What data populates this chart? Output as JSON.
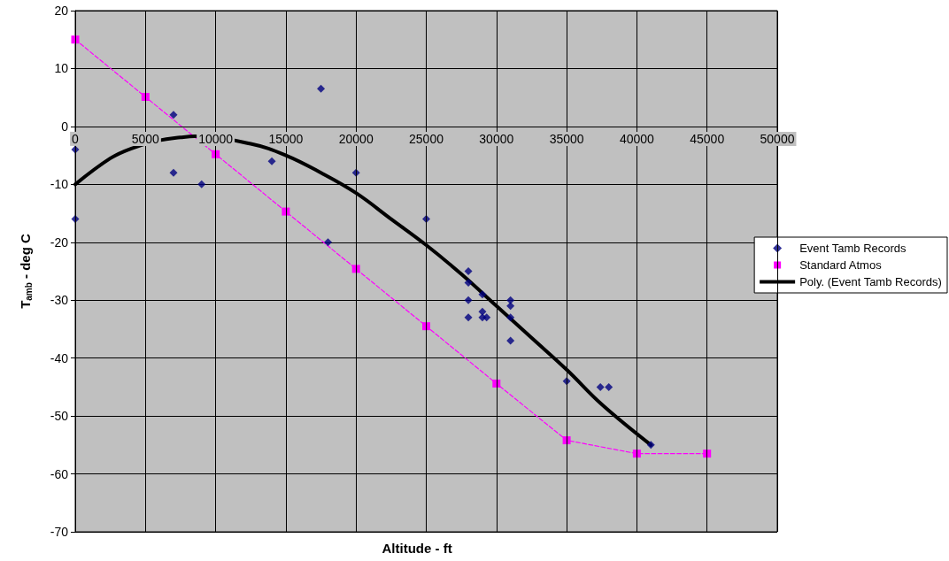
{
  "chart_data": {
    "type": "scatter",
    "xlabel": "Altitude - ft",
    "ylabel": "T$_{amb}$ - deg C",
    "xlim": [
      0,
      50000
    ],
    "xticks": [
      0,
      5000,
      10000,
      15000,
      20000,
      25000,
      30000,
      35000,
      40000,
      45000,
      50000
    ],
    "ylim": [
      -70,
      20
    ],
    "yticks": [
      -70,
      -60,
      -50,
      -40,
      -30,
      -20,
      -10,
      0,
      10,
      20
    ],
    "grid": true,
    "legend": "right",
    "series": [
      {
        "name": "Event Tamb Records",
        "type": "scatter",
        "marker": "diamond",
        "color": "#000080",
        "x": [
          0,
          0,
          7000,
          7000,
          9000,
          14000,
          17500,
          18000,
          20000,
          25000,
          28000,
          28000,
          29000,
          28000,
          29000,
          28000,
          29000,
          29300,
          31000,
          31000,
          31000,
          31000,
          35000,
          37400,
          38000,
          41000
        ],
        "values": [
          -4,
          -16,
          2,
          -8,
          -10,
          -6,
          6.5,
          -20,
          -8,
          -16,
          -25,
          -27,
          -29,
          -30,
          -32,
          -33,
          -33,
          -33,
          -30,
          -31,
          -33,
          -37,
          -44,
          -45,
          -45,
          -55
        ]
      },
      {
        "name": "Standard Atmos",
        "type": "line",
        "marker": "square",
        "line_style": "dashed",
        "color": "#ff00ff",
        "x": [
          0,
          5000,
          10000,
          15000,
          20000,
          25000,
          30000,
          35000,
          40000,
          45000
        ],
        "values": [
          15,
          5.1,
          -4.8,
          -14.7,
          -24.6,
          -34.5,
          -44.4,
          -54.2,
          -56.5,
          -56.5
        ]
      },
      {
        "name": "Poly. (Event Tamb Records)",
        "type": "line",
        "marker": "none",
        "line_style": "solid",
        "color": "#000000",
        "x": [
          0,
          2500,
          4000,
          6000,
          7500,
          8500,
          12500,
          15000,
          17500,
          20000,
          22500,
          25000,
          27500,
          30000,
          32500,
          35000,
          37500,
          41000
        ],
        "values": [
          -10,
          -5.5,
          -3.8,
          -2.4,
          -1.9,
          -1.7,
          -3,
          -5,
          -8,
          -11.5,
          -16,
          -20.5,
          -25.5,
          -31,
          -36.5,
          -42,
          -48,
          -55
        ]
      }
    ]
  }
}
